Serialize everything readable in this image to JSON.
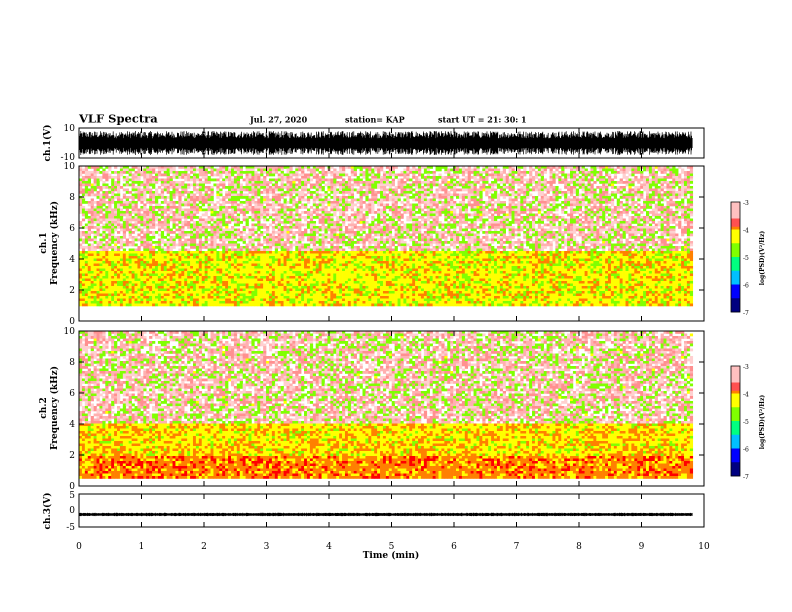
{
  "header": {
    "title": "VLF Spectra",
    "date": "Jul. 27, 2020",
    "station": "station= KAP",
    "start": "start  UT =   21: 30: 1"
  },
  "colors": {
    "colormap": [
      "#000080",
      "#0000ff",
      "#00a0ff",
      "#00e0a0",
      "#40ff40",
      "#c0ff20",
      "#ffff00",
      "#ffa000",
      "#ff2000",
      "#ff6060",
      "#ffc0c0",
      "#ffffff"
    ],
    "trace": "#000000",
    "axis": "#000000"
  },
  "chart_data": [
    {
      "type": "line",
      "panel": "waveform-ch1",
      "ylabel": "ch.1(V)",
      "xlim": [
        0,
        10
      ],
      "ylim": [
        -10,
        10
      ],
      "yticks": [
        "-10",
        "10"
      ],
      "series": [
        {
          "description_level": "dense oscillation roughly -8 to 8 V",
          "amplitude": 8,
          "x_end": 9.82
        }
      ]
    },
    {
      "type": "heatmap",
      "panel": "spectrogram-ch1",
      "ylabel": "ch.1",
      "ylabel2": "Frequency (kHz)",
      "xlim": [
        0,
        10
      ],
      "ylim": [
        0,
        10
      ],
      "yticks": [
        "0",
        "2",
        "4",
        "6",
        "8",
        "10"
      ],
      "colorbar": {
        "label": "log(PSD)(V²/Hz)",
        "range": [
          -7,
          -3
        ],
        "ticks": [
          "-3",
          "-4",
          "-5",
          "-6",
          "-7"
        ]
      },
      "bands": [
        {
          "f_low": 1.0,
          "f_high": 4.5,
          "level": -4.2
        },
        {
          "f_low": 4.5,
          "f_high": 10,
          "level": -4.9
        }
      ]
    },
    {
      "type": "heatmap",
      "panel": "spectrogram-ch2",
      "ylabel": "ch.2",
      "ylabel2": "Frequency (kHz)",
      "xlim": [
        0,
        10
      ],
      "ylim": [
        0,
        10
      ],
      "yticks": [
        "0",
        "2",
        "4",
        "6",
        "8",
        "10"
      ],
      "colorbar": {
        "label": "log(PSD)(V²/Hz)",
        "range": [
          -7,
          -3
        ],
        "ticks": [
          "-3",
          "-4",
          "-5",
          "-6",
          "-7"
        ]
      },
      "bands": [
        {
          "f_low": 0.5,
          "f_high": 2.0,
          "level": -3.7
        },
        {
          "f_low": 2.0,
          "f_high": 4.0,
          "level": -4.1
        },
        {
          "f_low": 4.0,
          "f_high": 10,
          "level": -4.9
        }
      ]
    },
    {
      "type": "line",
      "panel": "waveform-ch3",
      "ylabel": "ch.3(V)",
      "xlim": [
        0,
        10
      ],
      "ylim": [
        -5,
        5
      ],
      "yticks": [
        "-5",
        "0",
        "5"
      ],
      "series": [
        {
          "description_level": "thin band around -1 V",
          "center": -1.2,
          "amplitude": 0.5,
          "x_end": 9.82
        }
      ]
    }
  ],
  "xaxis": {
    "label": "Time (min)",
    "ticks": [
      "0",
      "1",
      "2",
      "3",
      "4",
      "5",
      "6",
      "7",
      "8",
      "9",
      "10"
    ]
  }
}
